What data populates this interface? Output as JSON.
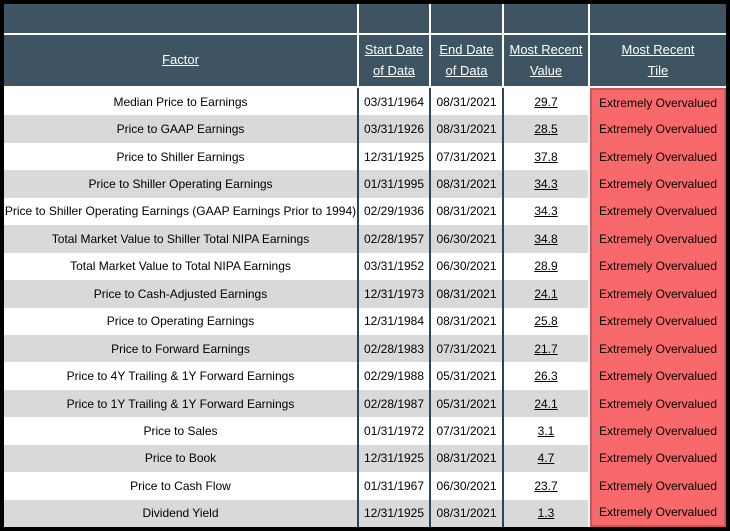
{
  "colors": {
    "header_bg": "#3e5463",
    "grid_line": "#2e4557",
    "row_bg": "#ffffff",
    "row_alt_bg": "#d9d9d9",
    "tile_bg": "#f8696b",
    "tile_border": "#d05456",
    "header_text": "#ffffff",
    "data_text": "#000000",
    "frame_border": "#000000"
  },
  "table": {
    "columns": {
      "factor": "Factor",
      "start": "Start Date\nof Data",
      "end": "End Date\nof Data",
      "value": "Most Recent\nValue",
      "tile": "Most Recent\nTile"
    },
    "rows": [
      {
        "factor": "Median Price to Earnings",
        "start": "03/31/1964",
        "end": "08/31/2021",
        "value": "29.7",
        "tile": "Extremely Overvalued"
      },
      {
        "factor": "Price to GAAP Earnings",
        "start": "03/31/1926",
        "end": "08/31/2021",
        "value": "28.5",
        "tile": "Extremely Overvalued"
      },
      {
        "factor": "Price to Shiller Earnings",
        "start": "12/31/1925",
        "end": "07/31/2021",
        "value": "37.8",
        "tile": "Extremely Overvalued"
      },
      {
        "factor": "Price to Shiller Operating Earnings",
        "start": "01/31/1995",
        "end": "08/31/2021",
        "value": "34.3",
        "tile": "Extremely Overvalued"
      },
      {
        "factor": "Price to Shiller Operating Earnings (GAAP Earnings Prior to 1994)",
        "start": "02/29/1936",
        "end": "08/31/2021",
        "value": "34.3",
        "tile": "Extremely Overvalued"
      },
      {
        "factor": "Total Market Value to Shiller Total NIPA Earnings",
        "start": "02/28/1957",
        "end": "06/30/2021",
        "value": "34.8",
        "tile": "Extremely Overvalued"
      },
      {
        "factor": "Total Market Value to Total NIPA Earnings",
        "start": "03/31/1952",
        "end": "06/30/2021",
        "value": "28.9",
        "tile": "Extremely Overvalued"
      },
      {
        "factor": "Price to Cash-Adjusted Earnings",
        "start": "12/31/1973",
        "end": "08/31/2021",
        "value": "24.1",
        "tile": "Extremely Overvalued"
      },
      {
        "factor": "Price to Operating Earnings",
        "start": "12/31/1984",
        "end": "08/31/2021",
        "value": "25.8",
        "tile": "Extremely Overvalued"
      },
      {
        "factor": "Price to Forward Earnings",
        "start": "02/28/1983",
        "end": "07/31/2021",
        "value": "21.7",
        "tile": "Extremely Overvalued"
      },
      {
        "factor": "Price to 4Y Trailing & 1Y Forward Earnings",
        "start": "02/29/1988",
        "end": "05/31/2021",
        "value": "26.3",
        "tile": "Extremely Overvalued"
      },
      {
        "factor": "Price to 1Y Trailing & 1Y Forward Earnings",
        "start": "02/28/1987",
        "end": "05/31/2021",
        "value": "24.1",
        "tile": "Extremely Overvalued"
      },
      {
        "factor": "Price to Sales",
        "start": "01/31/1972",
        "end": "07/31/2021",
        "value": "3.1",
        "tile": "Extremely Overvalued"
      },
      {
        "factor": "Price to Book",
        "start": "12/31/1925",
        "end": "08/31/2021",
        "value": "4.7",
        "tile": "Extremely Overvalued"
      },
      {
        "factor": "Price to Cash Flow",
        "start": "01/31/1967",
        "end": "06/30/2021",
        "value": "23.7",
        "tile": "Extremely Overvalued"
      },
      {
        "factor": "Dividend Yield",
        "start": "12/31/1925",
        "end": "08/31/2021",
        "value": "1.3",
        "tile": "Extremely Overvalued"
      }
    ]
  }
}
